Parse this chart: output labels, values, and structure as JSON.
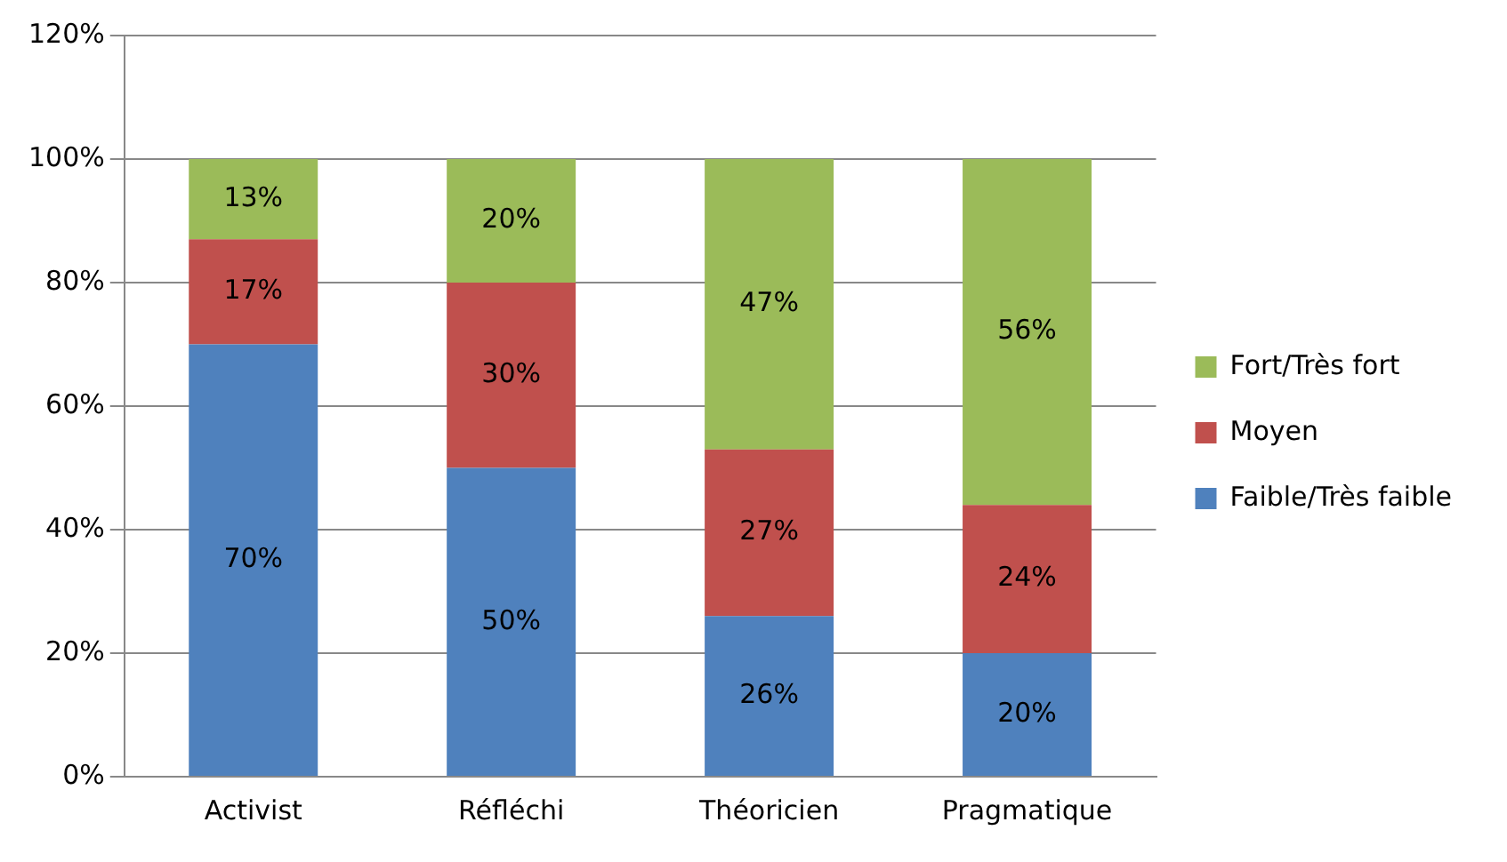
{
  "chart_data": {
    "type": "bar",
    "stacked": true,
    "categories": [
      "Activist",
      "Réfléchi",
      "Théoricien",
      "Pragmatique"
    ],
    "series": [
      {
        "name": "Faible/Très faible",
        "color": "#4f81bd",
        "values": [
          70,
          50,
          26,
          20
        ],
        "value_labels": [
          "70%",
          "50%",
          "26%",
          "20%"
        ]
      },
      {
        "name": "Moyen",
        "color": "#c0504d",
        "values": [
          17,
          30,
          27,
          24
        ],
        "value_labels": [
          "17%",
          "30%",
          "27%",
          "24%"
        ]
      },
      {
        "name": "Fort/Très fort",
        "color": "#9bbb59",
        "values": [
          13,
          20,
          47,
          56
        ],
        "value_labels": [
          "13%",
          "20%",
          "47%",
          "56%"
        ]
      }
    ],
    "ylim": [
      0,
      120
    ],
    "yticks": [
      {
        "value": 0,
        "label": "0%"
      },
      {
        "value": 20,
        "label": "20%"
      },
      {
        "value": 40,
        "label": "40%"
      },
      {
        "value": 60,
        "label": "60%"
      },
      {
        "value": 80,
        "label": "80%"
      },
      {
        "value": 100,
        "label": "100%"
      },
      {
        "value": 120,
        "label": "120%"
      }
    ],
    "grid": "y",
    "legend": "right"
  }
}
